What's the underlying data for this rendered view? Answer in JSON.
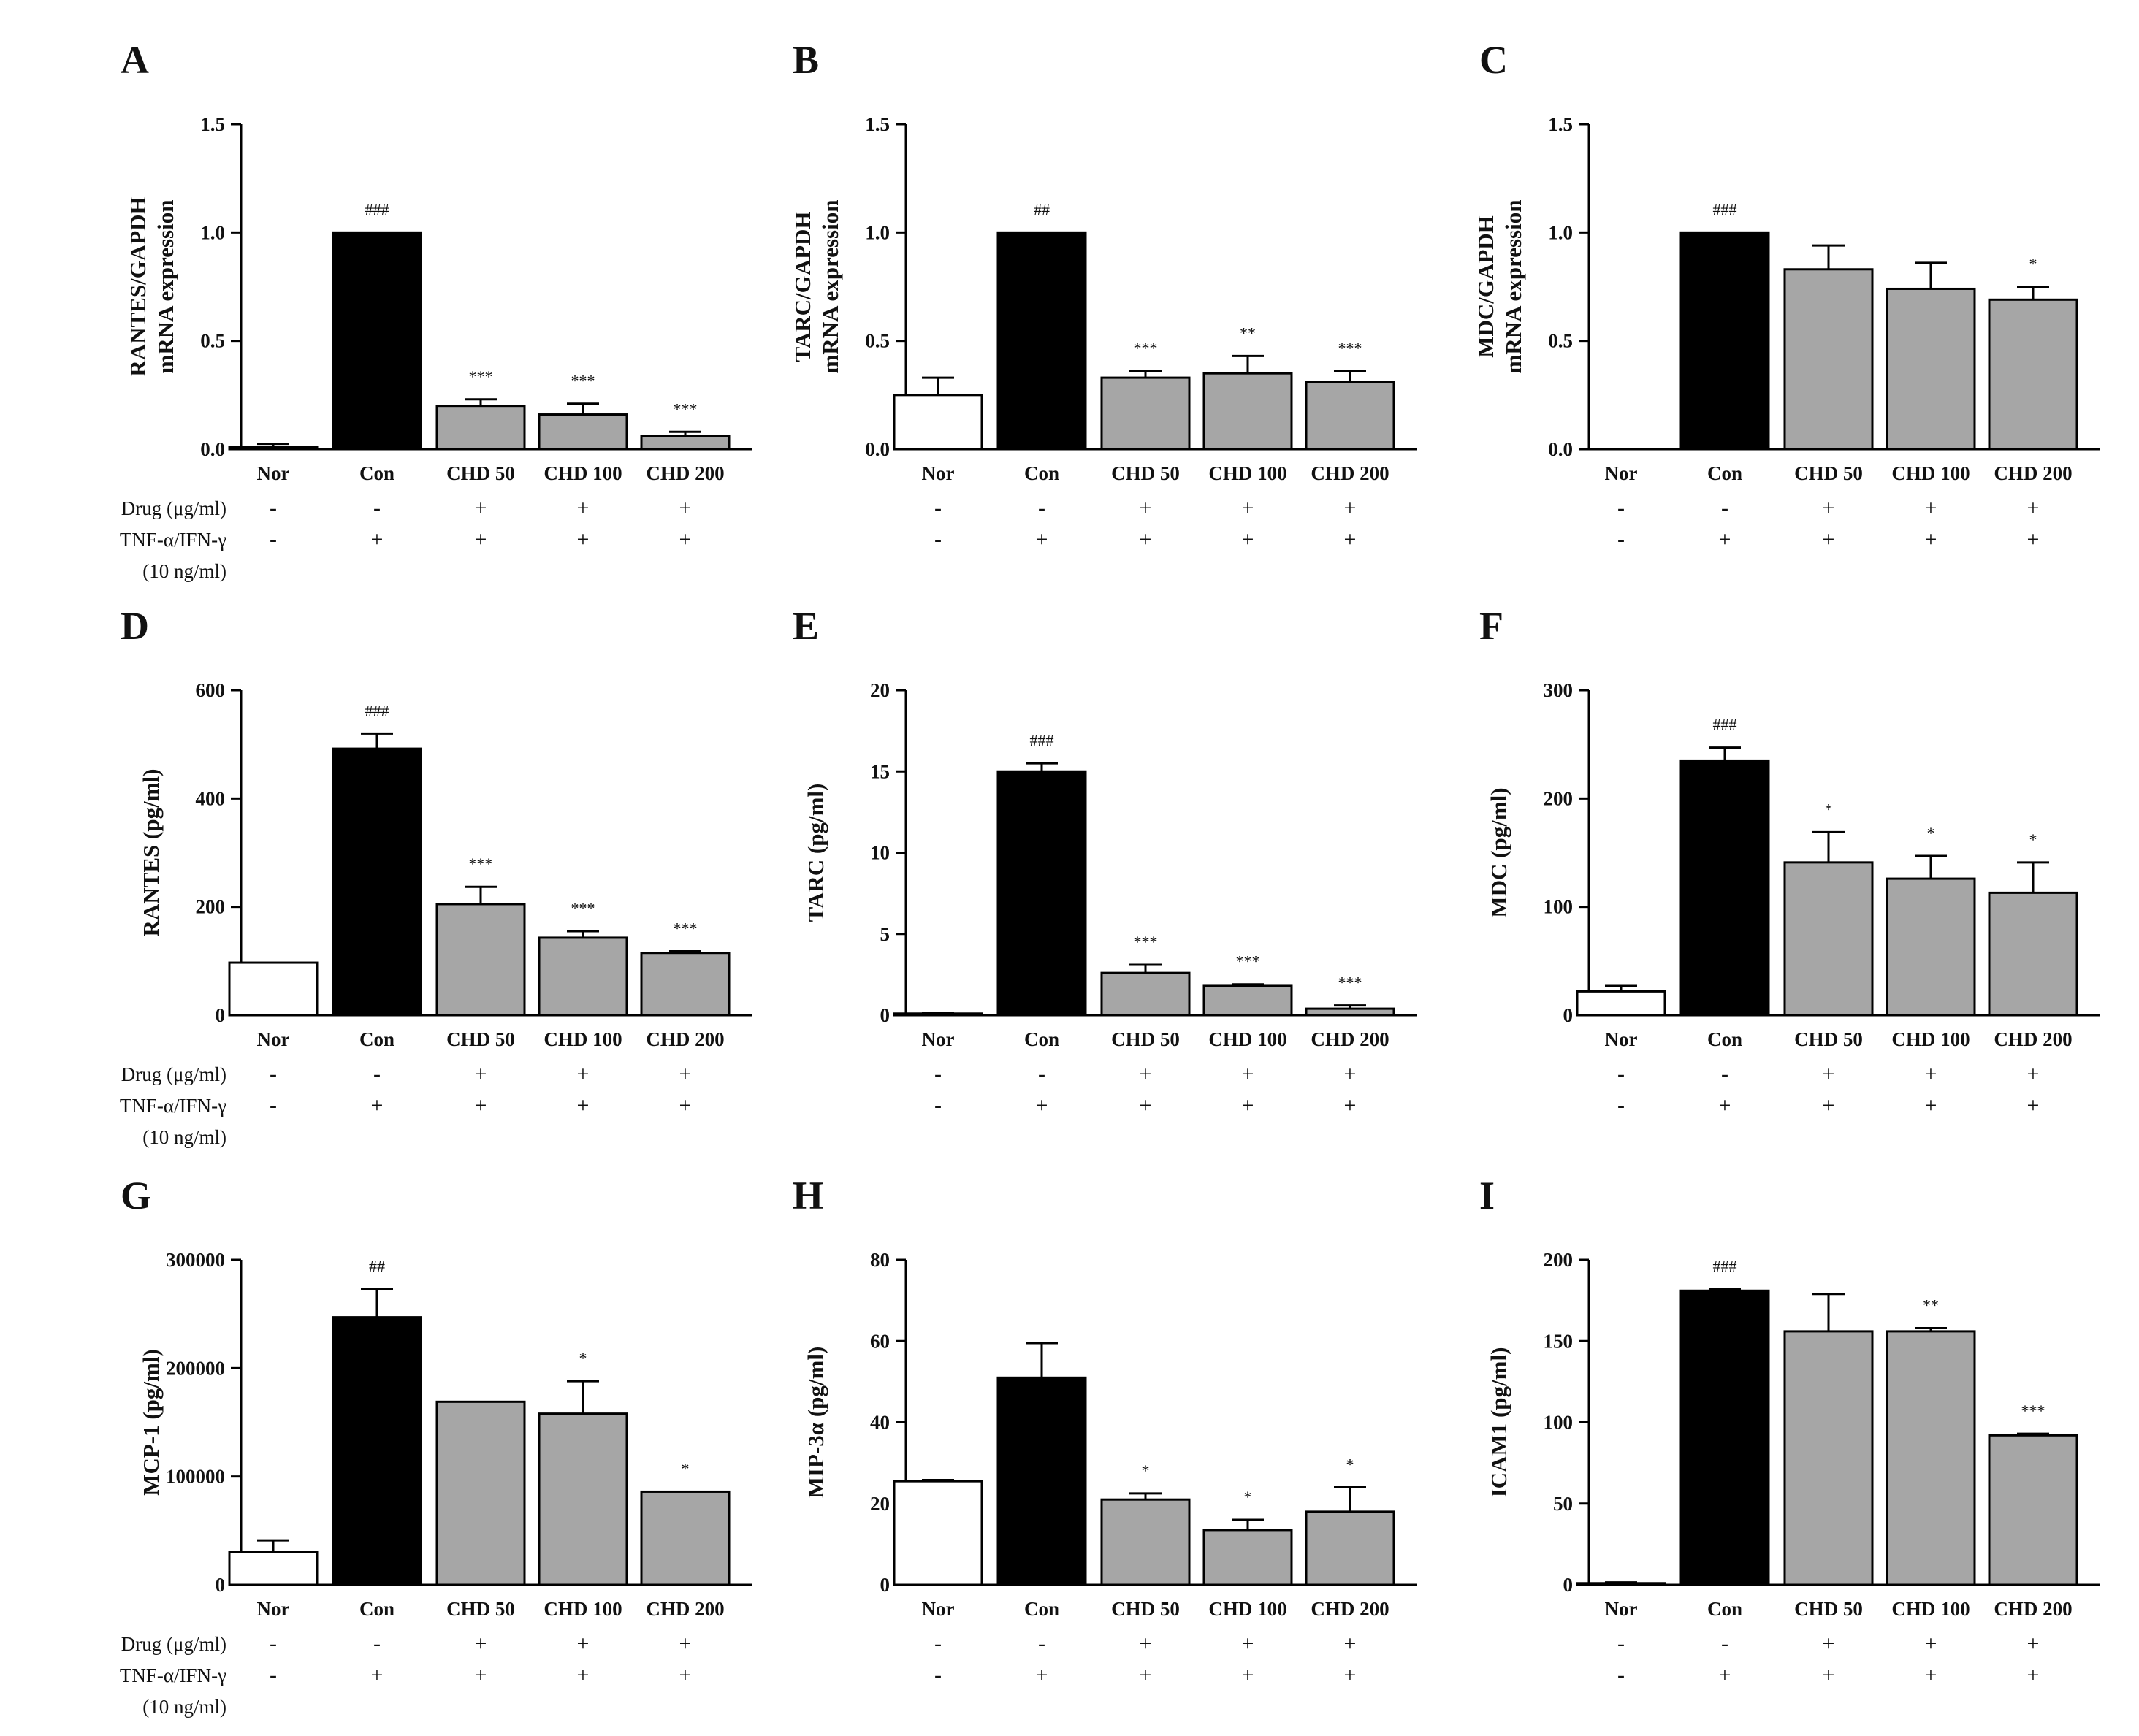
{
  "figure": {
    "treatment_rows": [
      {
        "label": "Drug (μg/ml)",
        "symbols": [
          "-",
          "-",
          "+",
          "+",
          "+"
        ]
      },
      {
        "label": "TNF-α/IFN-γ",
        "symbols": [
          "-",
          "+",
          "+",
          "+",
          "+"
        ]
      }
    ],
    "treatment_extra_label": "(10 ng/ml)",
    "bar_colors": [
      "#ffffff",
      "#000000",
      "#a6a6a6",
      "#a6a6a6",
      "#a6a6a6"
    ]
  },
  "chart_data": [
    {
      "panel": "A",
      "type": "bar",
      "ylabel": [
        "RANTES/GAPDH",
        "mRNA expression"
      ],
      "ylim": [
        0,
        1.5
      ],
      "yticks": [
        "0.0",
        "0.5",
        "1.0",
        "1.5"
      ],
      "categories": [
        "Nor",
        "Con",
        "CHD 50",
        "CHD 100",
        "CHD 200"
      ],
      "values": [
        0.01,
        1.0,
        0.2,
        0.16,
        0.06
      ],
      "errors": [
        0.015,
        0.0,
        0.03,
        0.05,
        0.02
      ],
      "significance": [
        "",
        "###",
        "***",
        "***",
        "***"
      ],
      "show_treatment_labels": true
    },
    {
      "panel": "B",
      "type": "bar",
      "ylabel": [
        "TARC/GAPDH",
        "mRNA expression"
      ],
      "ylim": [
        0,
        1.5
      ],
      "yticks": [
        "0.0",
        "0.5",
        "1.0",
        "1.5"
      ],
      "categories": [
        "Nor",
        "Con",
        "CHD 50",
        "CHD 100",
        "CHD 200"
      ],
      "values": [
        0.25,
        1.0,
        0.33,
        0.35,
        0.31
      ],
      "errors": [
        0.08,
        0.0,
        0.03,
        0.08,
        0.05
      ],
      "significance": [
        "",
        "##",
        "***",
        "**",
        "***"
      ],
      "show_treatment_labels": false
    },
    {
      "panel": "C",
      "type": "bar",
      "ylabel": [
        "MDC/GAPDH",
        "mRNA expression"
      ],
      "ylim": [
        0,
        1.5
      ],
      "yticks": [
        "0.0",
        "0.5",
        "1.0",
        "1.5"
      ],
      "categories": [
        "Nor",
        "Con",
        "CHD 50",
        "CHD 100",
        "CHD 200"
      ],
      "values": [
        0.0,
        1.0,
        0.83,
        0.74,
        0.69
      ],
      "errors": [
        0.0,
        0.0,
        0.11,
        0.12,
        0.06
      ],
      "significance": [
        "",
        "###",
        "",
        "",
        "*"
      ],
      "show_treatment_labels": false
    },
    {
      "panel": "D",
      "type": "bar",
      "ylabel": [
        "RANTES (pg/ml)"
      ],
      "ylim": [
        0,
        600
      ],
      "yticks": [
        "0",
        "200",
        "400",
        "600"
      ],
      "categories": [
        "Nor",
        "Con",
        "CHD 50",
        "CHD 100",
        "CHD 200"
      ],
      "values": [
        97,
        492,
        205,
        143,
        115
      ],
      "errors": [
        0,
        28,
        32,
        12,
        3
      ],
      "significance": [
        "",
        "###",
        "***",
        "***",
        "***"
      ],
      "show_treatment_labels": true
    },
    {
      "panel": "E",
      "type": "bar",
      "ylabel": [
        "TARC (pg/ml)"
      ],
      "ylim": [
        0,
        20
      ],
      "yticks": [
        "0",
        "5",
        "10",
        "15",
        "20"
      ],
      "categories": [
        "Nor",
        "Con",
        "CHD 50",
        "CHD 100",
        "CHD 200"
      ],
      "values": [
        0.1,
        15.0,
        2.6,
        1.8,
        0.4
      ],
      "errors": [
        0.05,
        0.5,
        0.5,
        0.1,
        0.2
      ],
      "significance": [
        "",
        "###",
        "***",
        "***",
        "***"
      ],
      "show_treatment_labels": false
    },
    {
      "panel": "F",
      "type": "bar",
      "ylabel": [
        "MDC (pg/ml)"
      ],
      "ylim": [
        0,
        300
      ],
      "yticks": [
        "0",
        "100",
        "200",
        "300"
      ],
      "categories": [
        "Nor",
        "Con",
        "CHD 50",
        "CHD 100",
        "CHD 200"
      ],
      "values": [
        22,
        235,
        141,
        126,
        113
      ],
      "errors": [
        5,
        12,
        28,
        21,
        28
      ],
      "significance": [
        "",
        "###",
        "*",
        "*",
        "*"
      ],
      "show_treatment_labels": false
    },
    {
      "panel": "G",
      "type": "bar",
      "ylabel": [
        "MCP-1 (pg/ml)"
      ],
      "ylim": [
        0,
        300000
      ],
      "yticks": [
        "0",
        "100000",
        "200000",
        "300000"
      ],
      "categories": [
        "Nor",
        "Con",
        "CHD 50",
        "CHD 100",
        "CHD 200"
      ],
      "values": [
        30000,
        247000,
        169000,
        158000,
        86000
      ],
      "errors": [
        11000,
        26000,
        0,
        30000,
        0
      ],
      "significance": [
        "",
        "##",
        "",
        "*",
        "*"
      ],
      "show_treatment_labels": true
    },
    {
      "panel": "H",
      "type": "bar",
      "ylabel": [
        "MIP-3α (pg/ml)"
      ],
      "ylim": [
        0,
        80
      ],
      "yticks": [
        "0",
        "20",
        "40",
        "60",
        "80"
      ],
      "categories": [
        "Nor",
        "Con",
        "CHD 50",
        "CHD 100",
        "CHD 200"
      ],
      "values": [
        25.5,
        51,
        21,
        13.5,
        18
      ],
      "errors": [
        0.3,
        8.5,
        1.5,
        2.5,
        6
      ],
      "significance": [
        "",
        "",
        "*",
        "*",
        "*"
      ],
      "show_treatment_labels": false
    },
    {
      "panel": "I",
      "type": "bar",
      "ylabel": [
        "ICAM1 (pg/ml)"
      ],
      "ylim": [
        0,
        200
      ],
      "yticks": [
        "0",
        "50",
        "100",
        "150",
        "200"
      ],
      "categories": [
        "Nor",
        "Con",
        "CHD 50",
        "CHD 100",
        "CHD 200"
      ],
      "values": [
        1,
        181,
        156,
        156,
        92
      ],
      "errors": [
        0.5,
        1,
        23,
        2,
        1
      ],
      "significance": [
        "",
        "###",
        "",
        "**",
        "***"
      ],
      "show_treatment_labels": false
    }
  ]
}
